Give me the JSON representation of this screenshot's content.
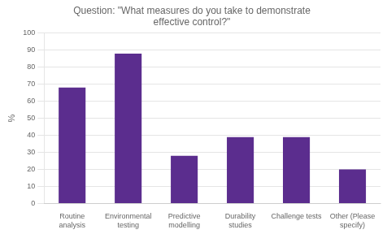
{
  "chart_data": {
    "type": "bar",
    "title": "Question: \"What measures do you take to demonstrate\neffective control?\"",
    "categories": [
      "Routine\nanalysis",
      "Environmental\ntesting",
      "Predictive\nmodelling",
      "Durability\nstudies",
      "Challenge tests",
      "Other (Please\nspecify)"
    ],
    "values": [
      68,
      88,
      28,
      39,
      39,
      20
    ],
    "color": "#5b2d8e",
    "ylabel": "%",
    "ylim": [
      0,
      100
    ],
    "yticks": [
      0,
      10,
      20,
      30,
      40,
      50,
      60,
      70,
      80,
      90,
      100
    ],
    "grid": true
  }
}
